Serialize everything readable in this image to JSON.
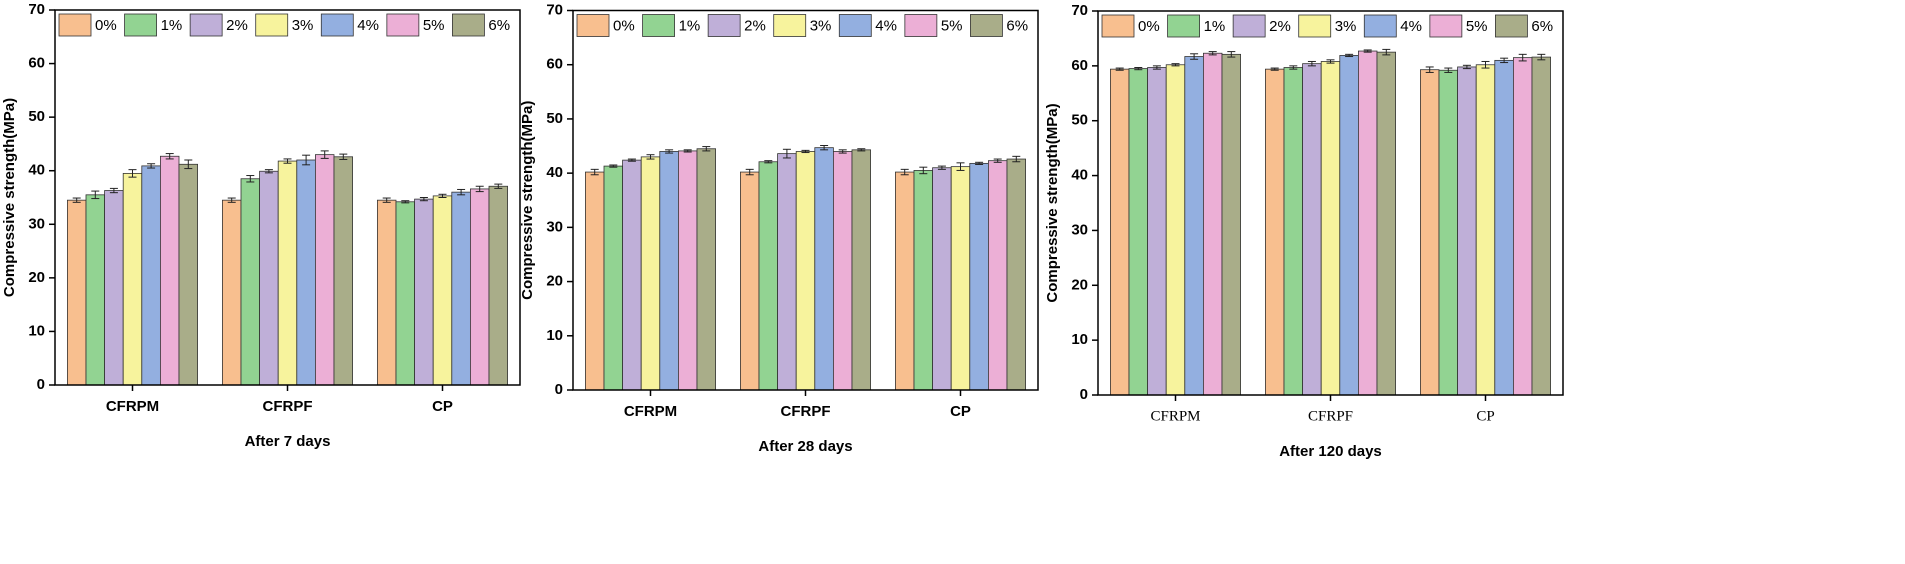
{
  "chart_data": [
    {
      "type": "bar",
      "x_title": "After 7 days",
      "y_title": "Compressive strength(MPa)",
      "categories": [
        "CFRPM",
        "CFRPF",
        "CP"
      ],
      "ylim": [
        0,
        70
      ],
      "yticks": [
        0,
        10,
        20,
        30,
        40,
        50,
        60,
        70
      ],
      "legend": "top",
      "series": [
        {
          "name": "0%",
          "color": "#f8bf8f",
          "values": [
            34.5,
            34.5,
            34.5
          ],
          "errors": [
            0.4,
            0.4,
            0.4
          ]
        },
        {
          "name": "1%",
          "color": "#92d392",
          "values": [
            35.5,
            38.5,
            34.2
          ],
          "errors": [
            0.7,
            0.6,
            0.2
          ]
        },
        {
          "name": "2%",
          "color": "#bfafd8",
          "values": [
            36.3,
            39.9,
            34.7
          ],
          "errors": [
            0.4,
            0.3,
            0.3
          ]
        },
        {
          "name": "3%",
          "color": "#f7f39d",
          "values": [
            39.5,
            41.8,
            35.3
          ],
          "errors": [
            0.7,
            0.4,
            0.3
          ]
        },
        {
          "name": "4%",
          "color": "#93afe0",
          "values": [
            40.9,
            42.0,
            36.0
          ],
          "errors": [
            0.4,
            0.9,
            0.5
          ]
        },
        {
          "name": "5%",
          "color": "#ecafd6",
          "values": [
            42.7,
            43.0,
            36.6
          ],
          "errors": [
            0.5,
            0.7,
            0.5
          ]
        },
        {
          "name": "6%",
          "color": "#a9ad89",
          "values": [
            41.2,
            42.6,
            37.1
          ],
          "errors": [
            0.8,
            0.5,
            0.4
          ]
        }
      ]
    },
    {
      "type": "bar",
      "x_title": "After 28 days",
      "y_title": "Compressive strength(MPa)",
      "categories": [
        "CFRPM",
        "CFRPF",
        "CP"
      ],
      "ylim": [
        0,
        70
      ],
      "yticks": [
        0,
        10,
        20,
        30,
        40,
        50,
        60,
        70
      ],
      "legend": "top",
      "series": [
        {
          "name": "0%",
          "color": "#f8bf8f",
          "values": [
            40.2,
            40.2,
            40.2
          ],
          "errors": [
            0.5,
            0.5,
            0.5
          ]
        },
        {
          "name": "1%",
          "color": "#92d392",
          "values": [
            41.3,
            42.1,
            40.5
          ],
          "errors": [
            0.2,
            0.2,
            0.6
          ]
        },
        {
          "name": "2%",
          "color": "#bfafd8",
          "values": [
            42.4,
            43.6,
            41.0
          ],
          "errors": [
            0.2,
            0.8,
            0.3
          ]
        },
        {
          "name": "3%",
          "color": "#f7f39d",
          "values": [
            43.0,
            44.0,
            41.2
          ],
          "errors": [
            0.4,
            0.2,
            0.7
          ]
        },
        {
          "name": "4%",
          "color": "#93afe0",
          "values": [
            44.0,
            44.7,
            41.8
          ],
          "errors": [
            0.3,
            0.4,
            0.2
          ]
        },
        {
          "name": "5%",
          "color": "#ecafd6",
          "values": [
            44.1,
            44.0,
            42.3
          ],
          "errors": [
            0.2,
            0.3,
            0.3
          ]
        },
        {
          "name": "6%",
          "color": "#a9ad89",
          "values": [
            44.5,
            44.3,
            42.6
          ],
          "errors": [
            0.4,
            0.2,
            0.5
          ]
        }
      ]
    },
    {
      "type": "bar",
      "x_title": "After 120 days",
      "y_title": "Compressive strength(MPa)",
      "categories": [
        "CFRPM",
        "CFRPF",
        "CP"
      ],
      "ylim": [
        0,
        70
      ],
      "yticks": [
        0,
        10,
        20,
        30,
        40,
        50,
        60,
        70
      ],
      "legend": "top",
      "series": [
        {
          "name": "0%",
          "color": "#f8bf8f",
          "values": [
            59.4,
            59.4,
            59.3
          ],
          "errors": [
            0.2,
            0.2,
            0.5
          ]
        },
        {
          "name": "1%",
          "color": "#92d392",
          "values": [
            59.5,
            59.7,
            59.2
          ],
          "errors": [
            0.2,
            0.3,
            0.4
          ]
        },
        {
          "name": "2%",
          "color": "#bfafd8",
          "values": [
            59.7,
            60.4,
            59.8
          ],
          "errors": [
            0.3,
            0.4,
            0.3
          ]
        },
        {
          "name": "3%",
          "color": "#f7f39d",
          "values": [
            60.2,
            60.8,
            60.2
          ],
          "errors": [
            0.2,
            0.3,
            0.6
          ]
        },
        {
          "name": "4%",
          "color": "#93afe0",
          "values": [
            61.7,
            61.9,
            61.0
          ],
          "errors": [
            0.5,
            0.2,
            0.4
          ]
        },
        {
          "name": "5%",
          "color": "#ecafd6",
          "values": [
            62.3,
            62.7,
            61.5
          ],
          "errors": [
            0.3,
            0.2,
            0.6
          ]
        },
        {
          "name": "6%",
          "color": "#a9ad89",
          "values": [
            62.1,
            62.5,
            61.6
          ],
          "errors": [
            0.5,
            0.5,
            0.5
          ]
        }
      ]
    }
  ]
}
